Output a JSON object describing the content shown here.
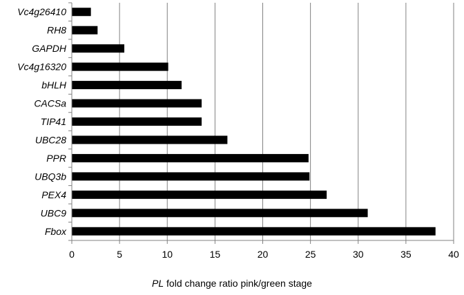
{
  "chart_data": {
    "type": "bar",
    "orientation": "horizontal",
    "categories": [
      "Vc4g26410",
      "RH8",
      "GAPDH",
      "Vc4g16320",
      "bHLH",
      "CACSa",
      "TIP41",
      "UBC28",
      "PPR",
      "UBQ3b",
      "PEX4",
      "UBC9",
      "Fbox"
    ],
    "values": [
      2.0,
      2.7,
      5.5,
      10.1,
      11.5,
      13.6,
      13.6,
      16.3,
      24.8,
      24.9,
      26.7,
      31.0,
      38.1
    ],
    "xlim": [
      0,
      40
    ],
    "xticks": [
      0,
      5,
      10,
      15,
      20,
      25,
      30,
      35,
      40
    ],
    "xlabel_italic": "PL",
    "xlabel_rest": " fold change ratio pink/green stage",
    "grid": "vertical",
    "bar_color": "#000000",
    "grid_color": "#808080"
  }
}
